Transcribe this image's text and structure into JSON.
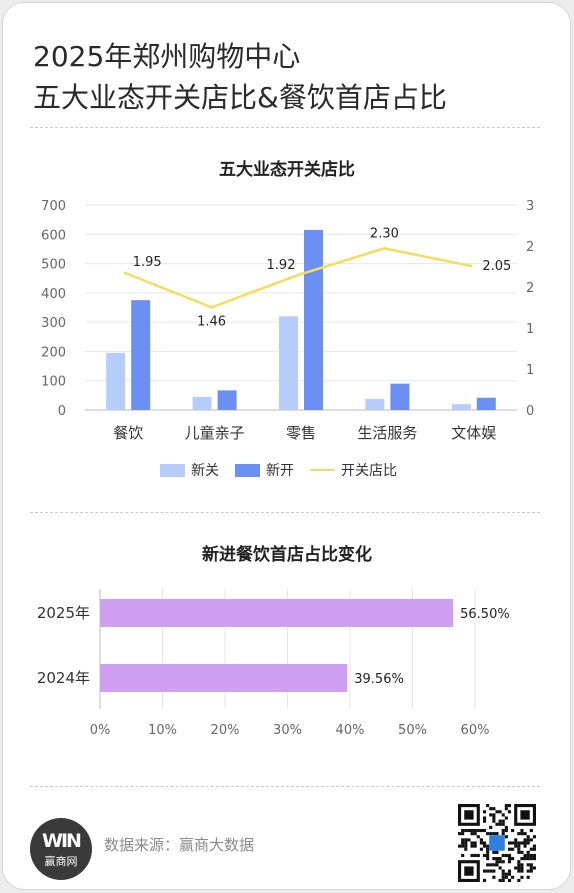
{
  "page": {
    "title_line1": "2025年郑州购物中心",
    "title_line2": "五大业态开关店比&餐饮首店占比",
    "source": "数据来源：赢商大数据",
    "logo_text": "赢商网",
    "logo_mark": "WIN"
  },
  "colors": {
    "closed": "#b6cdfa",
    "opened": "#6b8ff2",
    "ratio_line": "#f5dc5a",
    "first_store": "#cf9ff2"
  },
  "chart_data": [
    {
      "type": "bar",
      "title": "五大业态开关店比",
      "categories": [
        "餐饮",
        "儿童亲子",
        "零售",
        "生活服务",
        "文体娱"
      ],
      "series": [
        {
          "name": "新关",
          "type": "bar",
          "axis": "left",
          "values": [
            195,
            45,
            320,
            38,
            20
          ]
        },
        {
          "name": "新开",
          "type": "bar",
          "axis": "left",
          "values": [
            375,
            67,
            615,
            90,
            42
          ]
        },
        {
          "name": "开关店比",
          "type": "line",
          "axis": "right",
          "values": [
            1.95,
            1.46,
            1.92,
            2.3,
            2.05
          ],
          "labels": [
            "1.95",
            "1.46",
            "1.92",
            "2.30",
            "2.05"
          ]
        }
      ],
      "ylim": [
        0,
        700
      ],
      "y_ticks": [
        "700",
        "600",
        "500",
        "400",
        "300",
        "200",
        "100",
        "0"
      ],
      "y2lim": [
        0,
        2.5
      ],
      "y2_ticks": [
        "3",
        "2",
        "2",
        "1",
        "1",
        "0"
      ],
      "legend_position": "bottom",
      "grid": true
    },
    {
      "type": "bar",
      "orientation": "horizontal",
      "title": "新进餐饮首店占比变化",
      "categories": [
        "2025年",
        "2024年"
      ],
      "values": [
        56.5,
        39.56
      ],
      "labels": [
        "56.50%",
        "39.56%"
      ],
      "xlim": [
        0,
        60
      ],
      "x_ticks": [
        "0%",
        "10%",
        "20%",
        "30%",
        "40%",
        "50%",
        "60%"
      ],
      "grid": true
    }
  ]
}
